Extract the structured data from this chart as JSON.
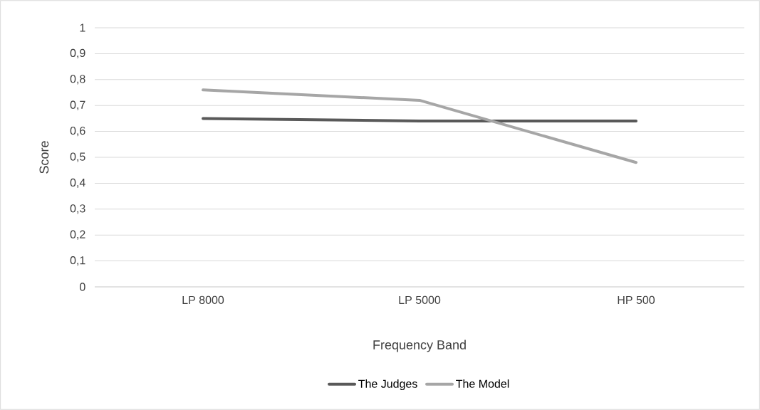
{
  "chart_data": {
    "type": "line",
    "categories": [
      "LP 8000",
      "LP 5000",
      "HP 500"
    ],
    "series": [
      {
        "name": "The Judges",
        "color": "#595959",
        "values": [
          0.65,
          0.64,
          0.64
        ]
      },
      {
        "name": "The Model",
        "color": "#a6a6a6",
        "values": [
          0.76,
          0.72,
          0.48
        ]
      }
    ],
    "xlabel": "Frequency Band",
    "ylabel": "Score",
    "ylim": [
      0,
      1
    ],
    "yticks": [
      {
        "value": 0,
        "label": "0"
      },
      {
        "value": 0.1,
        "label": "0,1"
      },
      {
        "value": 0.2,
        "label": "0,2"
      },
      {
        "value": 0.3,
        "label": "0,3"
      },
      {
        "value": 0.4,
        "label": "0,4"
      },
      {
        "value": 0.5,
        "label": "0,5"
      },
      {
        "value": 0.6,
        "label": "0,6"
      },
      {
        "value": 0.7,
        "label": "0,7"
      },
      {
        "value": 0.8,
        "label": "0,8"
      },
      {
        "value": 0.9,
        "label": "0,9"
      },
      {
        "value": 1,
        "label": "1"
      }
    ],
    "grid": "y",
    "legend": "bottom"
  }
}
